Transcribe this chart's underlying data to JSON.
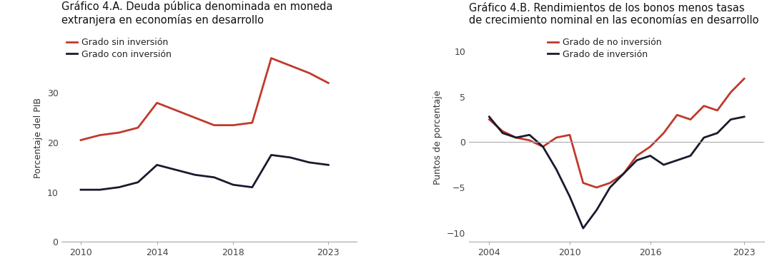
{
  "chart_a": {
    "title": "Gráfico 4.A. Deuda pública denominada en moneda\nextranjera en economías en desarrollo",
    "ylabel": "Porcentaje del PIB",
    "xlim": [
      2009.0,
      2024.5
    ],
    "ylim": [
      0,
      42
    ],
    "yticks": [
      0,
      10,
      20,
      30
    ],
    "xticks": [
      2010,
      2014,
      2018,
      2023
    ],
    "series_no_inv": {
      "label": "Grado sin inversión",
      "color": "#c0392b",
      "x": [
        2010,
        2011,
        2012,
        2013,
        2014,
        2015,
        2016,
        2017,
        2018,
        2019,
        2020,
        2021,
        2022,
        2023
      ],
      "y": [
        20.5,
        21.5,
        22.0,
        23.0,
        28.0,
        26.5,
        25.0,
        23.5,
        23.5,
        24.0,
        37.0,
        35.5,
        34.0,
        32.0
      ]
    },
    "series_inv": {
      "label": "Grado con inversión",
      "color": "#1a1a2e",
      "x": [
        2010,
        2011,
        2012,
        2013,
        2014,
        2015,
        2016,
        2017,
        2018,
        2019,
        2020,
        2021,
        2022,
        2023
      ],
      "y": [
        10.5,
        10.5,
        11.0,
        12.0,
        15.5,
        14.5,
        13.5,
        13.0,
        11.5,
        11.0,
        17.5,
        17.0,
        16.0,
        15.5
      ]
    }
  },
  "chart_b": {
    "title": "Gráfico 4.B. Rendimientos de los bonos menos tasas\nde crecimiento nominal en las economías en desarrollo",
    "ylabel": "Puntos de porcentaje",
    "xlim": [
      2002.5,
      2024.5
    ],
    "ylim": [
      -11,
      12
    ],
    "yticks": [
      -10,
      -5,
      0,
      5,
      10
    ],
    "xticks": [
      2004,
      2010,
      2016,
      2023
    ],
    "series_no_inv": {
      "label": "Grado de no inversión",
      "color": "#c0392b",
      "x": [
        2004,
        2005,
        2006,
        2007,
        2008,
        2009,
        2010,
        2011,
        2012,
        2013,
        2014,
        2015,
        2016,
        2017,
        2018,
        2019,
        2020,
        2021,
        2022,
        2023
      ],
      "y": [
        2.5,
        1.2,
        0.5,
        0.2,
        -0.5,
        0.5,
        0.8,
        -4.5,
        -5.0,
        -4.5,
        -3.5,
        -1.5,
        -0.5,
        1.0,
        3.0,
        2.5,
        4.0,
        3.5,
        5.5,
        7.0
      ]
    },
    "series_inv": {
      "label": "Grado de inversión",
      "color": "#1a1a2e",
      "x": [
        2004,
        2005,
        2006,
        2007,
        2008,
        2009,
        2010,
        2011,
        2012,
        2013,
        2014,
        2015,
        2016,
        2017,
        2018,
        2019,
        2020,
        2021,
        2022,
        2023
      ],
      "y": [
        2.8,
        1.0,
        0.5,
        0.8,
        -0.5,
        -3.0,
        -6.0,
        -9.5,
        -7.5,
        -5.0,
        -3.5,
        -2.0,
        -1.5,
        -2.5,
        -2.0,
        -1.5,
        0.5,
        1.0,
        2.5,
        2.8
      ]
    }
  },
  "bg_color": "#ffffff",
  "title_fontsize": 10.5,
  "label_fontsize": 9,
  "tick_fontsize": 9,
  "legend_fontsize": 9,
  "line_width": 2.0
}
